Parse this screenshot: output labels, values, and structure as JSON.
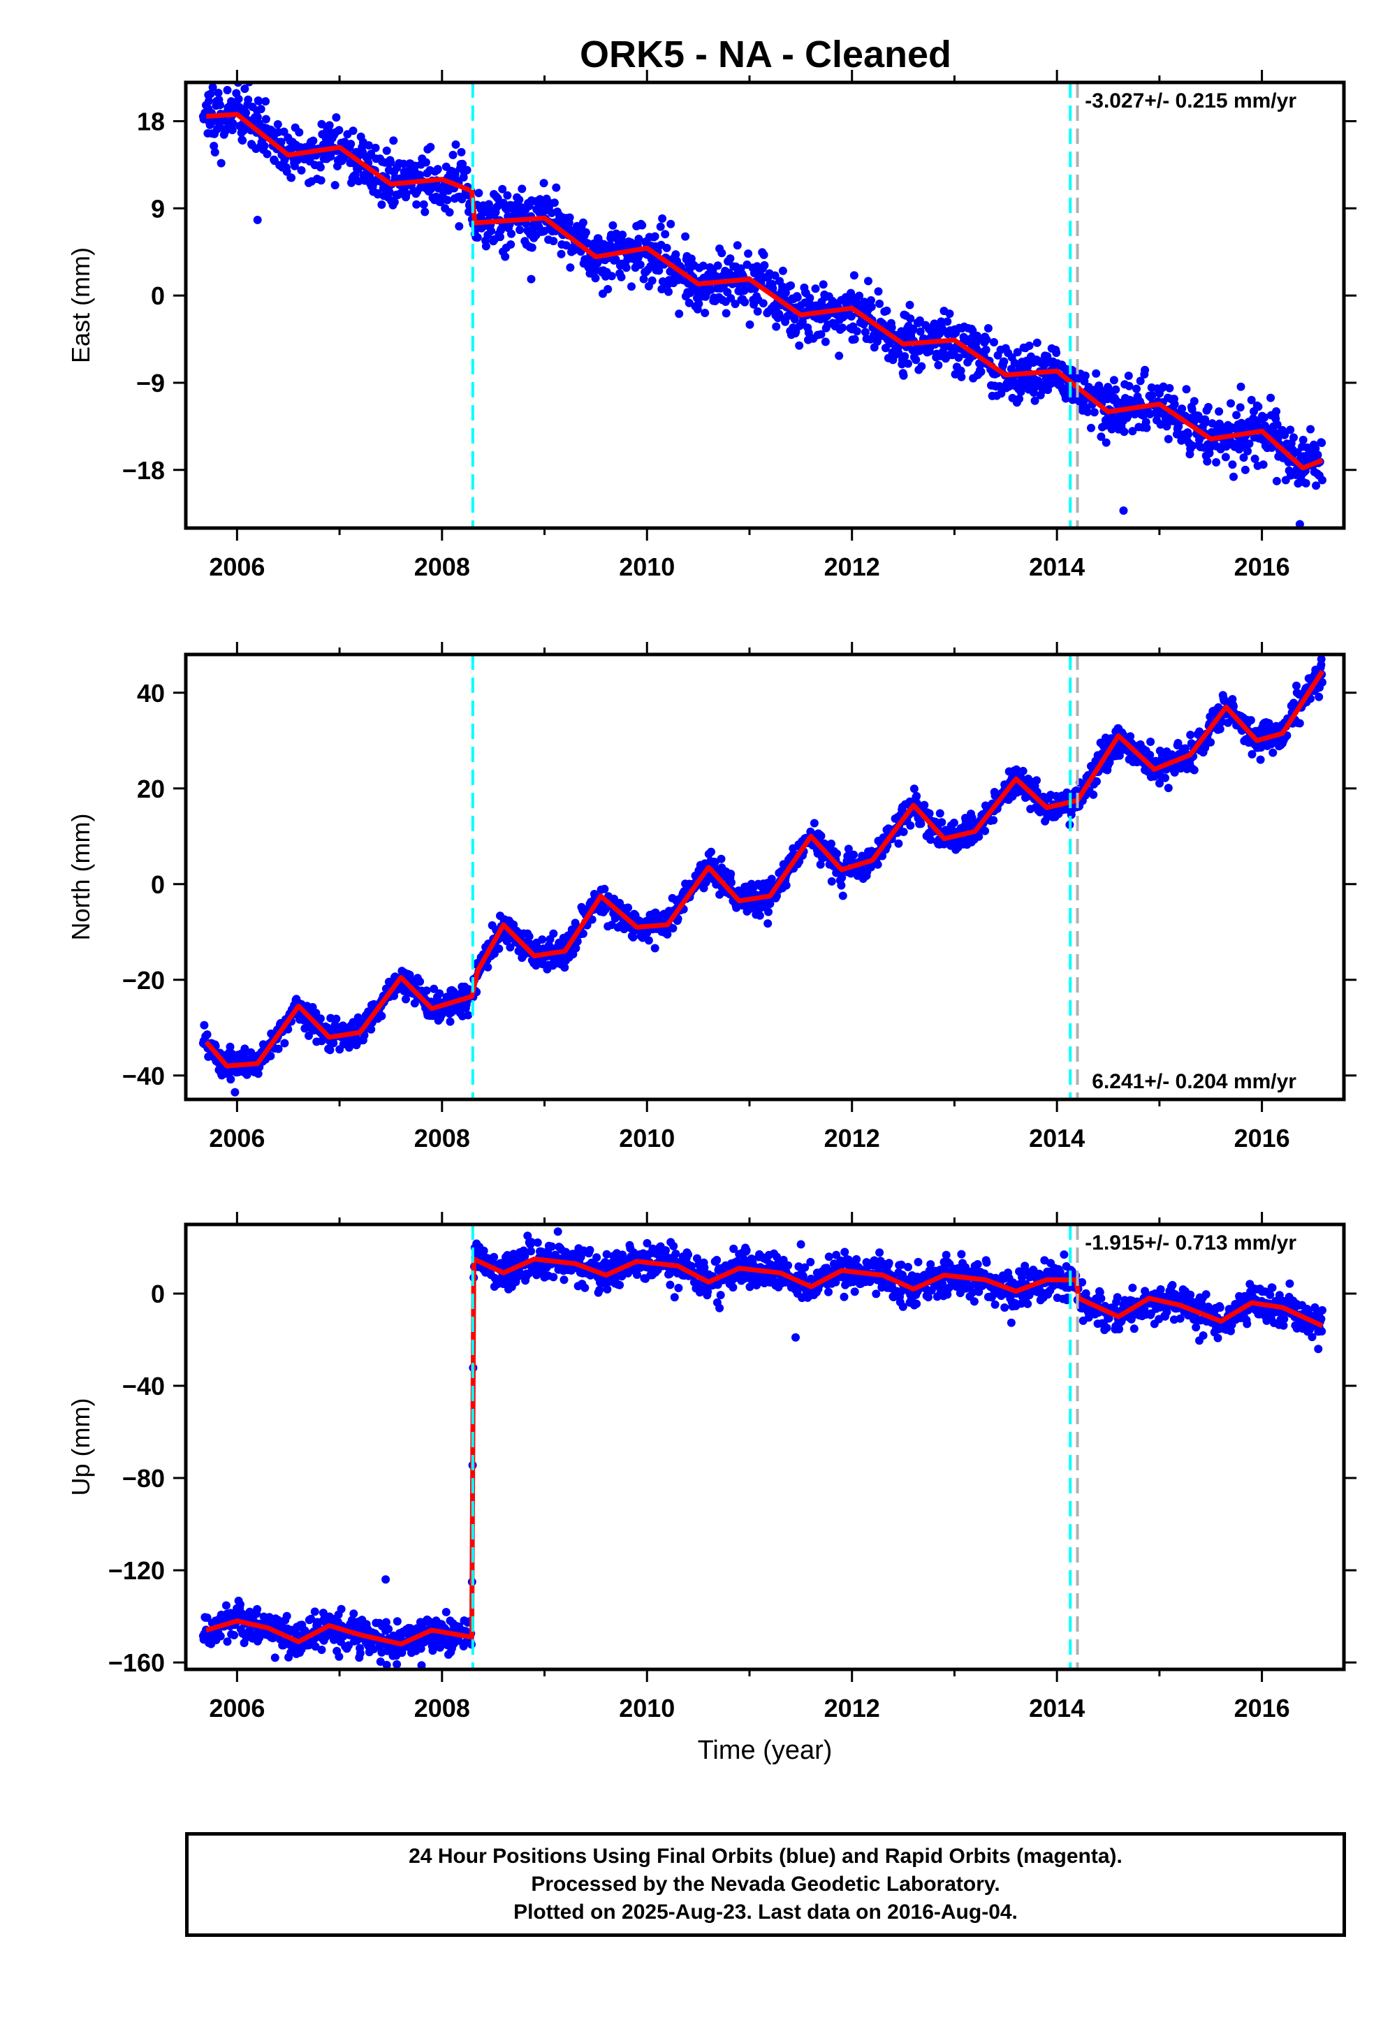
{
  "title": "ORK5  - NA - Cleaned",
  "xlabel": "Time (year)",
  "footer": {
    "line1": "24 Hour Positions Using Final Orbits (blue) and Rapid Orbits (magenta).",
    "line2": "Processed by the Nevada Geodetic Laboratory.",
    "line3": "Plotted on 2025-Aug-23. Last data on 2016-Aug-04."
  },
  "colors": {
    "data": "#0000ff",
    "model": "#ff0000",
    "event_equipment": "#00ffff",
    "event_other": "#b0b0b0",
    "frame": "#000000"
  },
  "chart_data": [
    {
      "type": "scatter",
      "component": "East",
      "ylabel": "East (mm)",
      "xlim": [
        2005.5,
        2016.8
      ],
      "ylim": [
        -24,
        22
      ],
      "yticks": [
        -18,
        -9,
        0,
        9,
        18
      ],
      "xticks": [
        2006,
        2008,
        2010,
        2012,
        2014,
        2016
      ],
      "rate_label": "-3.027+/- 0.215 mm/yr",
      "rate_position": "top-right",
      "event_lines": [
        {
          "x": 2008.3,
          "kind": "cyan"
        },
        {
          "x": 2014.13,
          "kind": "cyan"
        },
        {
          "x": 2014.2,
          "kind": "gray"
        }
      ],
      "data_start": 2005.67,
      "data_end": 2016.59,
      "trend_points": [
        [
          2005.7,
          18.5
        ],
        [
          2006.0,
          18.7
        ],
        [
          2006.5,
          14.5
        ],
        [
          2007.0,
          15.3
        ],
        [
          2007.5,
          11.5
        ],
        [
          2008.0,
          12.0
        ],
        [
          2008.29,
          10.8
        ],
        [
          2008.32,
          7.5
        ],
        [
          2009.0,
          8.0
        ],
        [
          2009.5,
          4.0
        ],
        [
          2010.0,
          4.9
        ],
        [
          2010.5,
          1.2
        ],
        [
          2011.0,
          1.7
        ],
        [
          2011.5,
          -2.0
        ],
        [
          2012.0,
          -1.3
        ],
        [
          2012.5,
          -5.0
        ],
        [
          2013.0,
          -4.6
        ],
        [
          2013.5,
          -8.2
        ],
        [
          2014.0,
          -7.8
        ],
        [
          2014.5,
          -12.0
        ],
        [
          2015.0,
          -11.2
        ],
        [
          2015.5,
          -14.8
        ],
        [
          2016.0,
          -14.0
        ],
        [
          2016.4,
          -17.8
        ],
        [
          2016.59,
          -17.0
        ]
      ],
      "scatter_spread": 1.5,
      "outliers": [
        [
          2005.72,
          20.7
        ],
        [
          2014.65,
          -22.2
        ],
        [
          2016.37,
          -23.6
        ],
        [
          2006.2,
          7.8
        ],
        [
          2008.87,
          1.7
        ]
      ]
    },
    {
      "type": "scatter",
      "component": "North",
      "ylabel": "North (mm)",
      "xlim": [
        2005.5,
        2016.8
      ],
      "ylim": [
        -45,
        48
      ],
      "yticks": [
        -40,
        -20,
        0,
        20,
        40
      ],
      "xticks": [
        2006,
        2008,
        2010,
        2012,
        2014,
        2016
      ],
      "rate_label": "6.241+/- 0.204 mm/yr",
      "rate_position": "bottom-right",
      "event_lines": [
        {
          "x": 2008.3,
          "kind": "cyan"
        },
        {
          "x": 2014.13,
          "kind": "cyan"
        },
        {
          "x": 2014.2,
          "kind": "gray"
        }
      ],
      "data_start": 2005.67,
      "data_end": 2016.59,
      "trend_points": [
        [
          2005.7,
          -33.0
        ],
        [
          2005.9,
          -38.0
        ],
        [
          2006.2,
          -37.5
        ],
        [
          2006.6,
          -25.5
        ],
        [
          2006.9,
          -32.0
        ],
        [
          2007.2,
          -31.0
        ],
        [
          2007.6,
          -19.5
        ],
        [
          2007.9,
          -26.0
        ],
        [
          2008.29,
          -23.5
        ],
        [
          2008.35,
          -18.0
        ],
        [
          2008.6,
          -8.5
        ],
        [
          2008.9,
          -15.0
        ],
        [
          2009.2,
          -14.0
        ],
        [
          2009.55,
          -2.5
        ],
        [
          2009.9,
          -9.0
        ],
        [
          2010.2,
          -8.5
        ],
        [
          2010.6,
          3.5
        ],
        [
          2010.9,
          -3.5
        ],
        [
          2011.2,
          -2.5
        ],
        [
          2011.6,
          10.0
        ],
        [
          2011.9,
          3.0
        ],
        [
          2012.2,
          5.0
        ],
        [
          2012.6,
          16.5
        ],
        [
          2012.9,
          9.5
        ],
        [
          2013.2,
          11.0
        ],
        [
          2013.6,
          22.0
        ],
        [
          2013.9,
          16.0
        ],
        [
          2014.2,
          17.5
        ],
        [
          2014.6,
          31.0
        ],
        [
          2014.95,
          24.0
        ],
        [
          2015.3,
          27.0
        ],
        [
          2015.65,
          37.0
        ],
        [
          2015.95,
          30.0
        ],
        [
          2016.2,
          31.5
        ],
        [
          2016.59,
          44.5
        ]
      ],
      "scatter_spread": 1.6,
      "outliers": [
        [
          2005.68,
          -29.5
        ],
        [
          2005.98,
          -43.5
        ],
        [
          2016.58,
          47.0
        ]
      ]
    },
    {
      "type": "scatter",
      "component": "Up",
      "ylabel": "Up (mm)",
      "xlim": [
        2005.5,
        2016.8
      ],
      "ylim": [
        -163,
        30
      ],
      "yticks": [
        -160,
        -120,
        -80,
        -40,
        0
      ],
      "xticks": [
        2006,
        2008,
        2010,
        2012,
        2014,
        2016
      ],
      "rate_label": "-1.915+/- 0.713 mm/yr",
      "rate_position": "top-right",
      "event_lines": [
        {
          "x": 2008.3,
          "kind": "cyan"
        },
        {
          "x": 2014.13,
          "kind": "cyan"
        },
        {
          "x": 2014.2,
          "kind": "gray"
        }
      ],
      "data_start": 2005.67,
      "data_end": 2016.59,
      "trend_points": [
        [
          2005.7,
          -146.0
        ],
        [
          2006.0,
          -142.0
        ],
        [
          2006.3,
          -145.0
        ],
        [
          2006.6,
          -151.0
        ],
        [
          2006.9,
          -144.0
        ],
        [
          2007.2,
          -148.0
        ],
        [
          2007.6,
          -152.0
        ],
        [
          2007.9,
          -146.0
        ],
        [
          2008.29,
          -149.0
        ],
        [
          2008.31,
          15.0
        ],
        [
          2008.6,
          9.0
        ],
        [
          2008.9,
          15.0
        ],
        [
          2009.3,
          13.0
        ],
        [
          2009.6,
          8.0
        ],
        [
          2009.9,
          14.0
        ],
        [
          2010.3,
          12.0
        ],
        [
          2010.6,
          5.0
        ],
        [
          2010.9,
          11.0
        ],
        [
          2011.3,
          9.0
        ],
        [
          2011.6,
          3.0
        ],
        [
          2011.9,
          10.0
        ],
        [
          2012.3,
          8.0
        ],
        [
          2012.6,
          2.0
        ],
        [
          2012.9,
          8.0
        ],
        [
          2013.3,
          6.0
        ],
        [
          2013.6,
          1.0
        ],
        [
          2013.9,
          6.0
        ],
        [
          2014.19,
          6.0
        ],
        [
          2014.21,
          -2.0
        ],
        [
          2014.6,
          -10.0
        ],
        [
          2014.9,
          -2.0
        ],
        [
          2015.2,
          -5.0
        ],
        [
          2015.6,
          -12.0
        ],
        [
          2015.9,
          -4.0
        ],
        [
          2016.2,
          -6.0
        ],
        [
          2016.59,
          -14.0
        ]
      ],
      "scatter_spread": 4.0,
      "outliers": [
        [
          2007.45,
          -124.0
        ],
        [
          2011.45,
          -19.0
        ],
        [
          2016.55,
          -24.0
        ]
      ]
    }
  ]
}
